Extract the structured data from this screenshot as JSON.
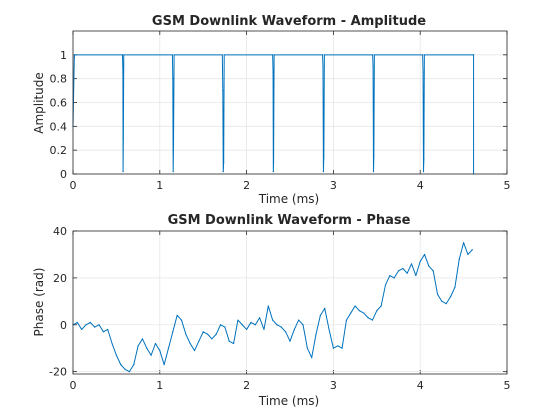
{
  "chart_data": [
    {
      "type": "line",
      "title": "GSM Downlink Waveform - Amplitude",
      "xlabel": "Time (ms)",
      "ylabel": "Amplitude",
      "xlim": [
        0,
        5
      ],
      "ylim": [
        0,
        1.2
      ],
      "xticks": [
        "0",
        "1",
        "2",
        "3",
        "4",
        "5"
      ],
      "yticks": [
        "0",
        "0.2",
        "0.4",
        "0.6",
        "0.8",
        "1"
      ],
      "grid": true,
      "color": "#0072BD",
      "end_time": 4.615,
      "slot_boundaries": [
        0.577,
        1.154,
        1.731,
        2.308,
        2.885,
        3.462,
        4.038
      ],
      "series": [
        {
          "x": [
            0,
            0.015,
            0.02,
            0.57,
            0.575,
            0.577,
            0.58,
            0.585,
            1.145,
            1.15,
            1.154,
            1.158,
            1.165,
            1.72,
            1.726,
            1.731,
            1.736,
            1.742,
            2.3,
            2.305,
            2.308,
            2.311,
            2.317,
            2.875,
            2.88,
            2.885,
            2.89,
            2.896,
            3.452,
            3.457,
            3.462,
            3.466,
            3.472,
            4.028,
            4.033,
            4.038,
            4.042,
            4.048,
            4.61,
            4.615,
            4.615
          ],
          "y": [
            0.4,
            0.98,
            1,
            1,
            0.85,
            0.02,
            0.3,
            1,
            1,
            0.8,
            0.02,
            0.25,
            1,
            1,
            0.7,
            0.02,
            0.1,
            1,
            1,
            0.85,
            0.02,
            0.1,
            1,
            1,
            0.9,
            0.02,
            0.15,
            1,
            1,
            0.9,
            0.02,
            0.15,
            1,
            1,
            0.85,
            0.02,
            0.12,
            1,
            1,
            1,
            0
          ]
        }
      ]
    },
    {
      "type": "line",
      "title": "GSM Downlink Waveform - Phase",
      "xlabel": "Time (ms)",
      "ylabel": "Phase (rad)",
      "xlim": [
        0,
        5
      ],
      "ylim": [
        -21,
        40
      ],
      "xticks": [
        "0",
        "1",
        "2",
        "3",
        "4",
        "5"
      ],
      "yticks": [
        "-20",
        "0",
        "20",
        "40"
      ],
      "grid": true,
      "color": "#0072BD",
      "series": [
        {
          "x": [
            0,
            0.05,
            0.1,
            0.15,
            0.2,
            0.25,
            0.3,
            0.35,
            0.4,
            0.45,
            0.5,
            0.55,
            0.6,
            0.65,
            0.7,
            0.75,
            0.8,
            0.85,
            0.9,
            0.95,
            1.0,
            1.05,
            1.1,
            1.15,
            1.2,
            1.25,
            1.3,
            1.35,
            1.4,
            1.45,
            1.5,
            1.55,
            1.6,
            1.65,
            1.7,
            1.75,
            1.8,
            1.85,
            1.9,
            1.95,
            2.0,
            2.05,
            2.1,
            2.15,
            2.2,
            2.25,
            2.3,
            2.35,
            2.4,
            2.45,
            2.5,
            2.55,
            2.6,
            2.65,
            2.7,
            2.75,
            2.8,
            2.85,
            2.9,
            2.95,
            3.0,
            3.05,
            3.1,
            3.15,
            3.2,
            3.25,
            3.3,
            3.35,
            3.4,
            3.45,
            3.5,
            3.55,
            3.6,
            3.65,
            3.7,
            3.75,
            3.8,
            3.85,
            3.9,
            3.95,
            4.0,
            4.05,
            4.1,
            4.15,
            4.2,
            4.25,
            4.3,
            4.35,
            4.4,
            4.45,
            4.5,
            4.55,
            4.6
          ],
          "y": [
            0,
            1,
            -2,
            0,
            1,
            -1,
            0,
            -3,
            -2,
            -8,
            -13,
            -17,
            -19,
            -20,
            -17,
            -9,
            -6,
            -10,
            -13,
            -8,
            -11,
            -17,
            -10,
            -3,
            4,
            2,
            -4,
            -8,
            -11,
            -7,
            -3,
            -4,
            -6,
            -4,
            0,
            -1,
            -7,
            -8,
            2,
            0,
            -2,
            1,
            0,
            3,
            -2,
            8,
            2,
            0,
            -1,
            -3,
            -7,
            -2,
            2,
            0,
            -10,
            -14,
            -4,
            4,
            7,
            -2,
            -10,
            -9,
            -10,
            2,
            5,
            8,
            6,
            5,
            3,
            2,
            6,
            8,
            17,
            21,
            20,
            23,
            24,
            22,
            26,
            21,
            27,
            30,
            25,
            23,
            13,
            10,
            9,
            12,
            16,
            28,
            35,
            30,
            32
          ]
        }
      ]
    }
  ]
}
